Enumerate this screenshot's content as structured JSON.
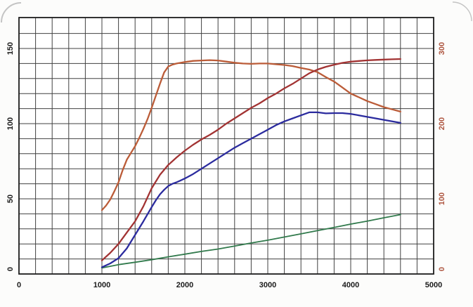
{
  "figure": {
    "background": "#fcfcfb",
    "plot_background": "#ffffff",
    "photo_corner_color": "#c4c4c4"
  },
  "chart_data": {
    "type": "line",
    "title": "",
    "subtitle": "",
    "legend": "none",
    "grid": {
      "show": true,
      "line_color": "#404040",
      "border_color": "#1c1c1c"
    },
    "x_axis": {
      "label": "",
      "unit": "rpm",
      "min": 0,
      "max": 5000,
      "tick_values": [
        0,
        1000,
        2000,
        3000,
        4000,
        5000
      ],
      "tick_labels": [
        "0",
        "1000",
        "2000",
        "3000",
        "4000",
        "5000"
      ],
      "minor_grid_step": 200,
      "label_color": "#1b1b1b"
    },
    "y_axis_left": {
      "label": "",
      "min": 0,
      "max": 170.5,
      "tick_values": [
        0,
        50,
        100,
        150
      ],
      "tick_labels": [
        "0",
        "50",
        "100",
        "150"
      ],
      "minor_grid_step": 10,
      "label_color": "#1b1b1b",
      "label_rotation_deg": -90
    },
    "y_axis_right": {
      "label": "",
      "min": 0,
      "max": 341,
      "tick_values": [
        0,
        100,
        200,
        300
      ],
      "tick_labels": [
        "0",
        "100",
        "200",
        "300"
      ],
      "label_color": "#ae5640",
      "label_rotation_deg": -90
    },
    "series": [
      {
        "name": "torque-curve-orange",
        "axis": "right",
        "color": "#bb5c38",
        "stroke_width": 2.3,
        "points": [
          [
            1000,
            85
          ],
          [
            1050,
            91
          ],
          [
            1100,
            99
          ],
          [
            1150,
            110
          ],
          [
            1200,
            122
          ],
          [
            1250,
            138
          ],
          [
            1300,
            152
          ],
          [
            1350,
            161
          ],
          [
            1400,
            170
          ],
          [
            1450,
            181
          ],
          [
            1500,
            193
          ],
          [
            1550,
            206
          ],
          [
            1600,
            221
          ],
          [
            1650,
            237
          ],
          [
            1700,
            253
          ],
          [
            1750,
            268
          ],
          [
            1800,
            276
          ],
          [
            1850,
            278.5
          ],
          [
            1900,
            280
          ],
          [
            2000,
            282
          ],
          [
            2100,
            283.5
          ],
          [
            2200,
            284
          ],
          [
            2300,
            284.5
          ],
          [
            2400,
            284
          ],
          [
            2500,
            282.5
          ],
          [
            2600,
            281
          ],
          [
            2700,
            280
          ],
          [
            2800,
            279.5
          ],
          [
            2900,
            280
          ],
          [
            3000,
            280
          ],
          [
            3100,
            279
          ],
          [
            3200,
            278
          ],
          [
            3300,
            276.5
          ],
          [
            3400,
            274
          ],
          [
            3500,
            272
          ],
          [
            3600,
            268.5
          ],
          [
            3700,
            262
          ],
          [
            3800,
            256
          ],
          [
            3900,
            248
          ],
          [
            4000,
            240
          ],
          [
            4100,
            235
          ],
          [
            4200,
            230
          ],
          [
            4300,
            226
          ],
          [
            4400,
            222
          ],
          [
            4500,
            219
          ],
          [
            4600,
            216
          ]
        ]
      },
      {
        "name": "power-curve-red",
        "axis": "left",
        "color": "#a23333",
        "stroke_width": 2.3,
        "points": [
          [
            1000,
            9
          ],
          [
            1100,
            14
          ],
          [
            1200,
            20
          ],
          [
            1300,
            27.5
          ],
          [
            1400,
            35
          ],
          [
            1500,
            45
          ],
          [
            1600,
            57
          ],
          [
            1700,
            66
          ],
          [
            1800,
            72.5
          ],
          [
            1900,
            77.5
          ],
          [
            2000,
            82
          ],
          [
            2100,
            86
          ],
          [
            2200,
            89.5
          ],
          [
            2300,
            92.5
          ],
          [
            2400,
            96
          ],
          [
            2500,
            100
          ],
          [
            2600,
            103.5
          ],
          [
            2700,
            107
          ],
          [
            2800,
            110.5
          ],
          [
            2900,
            113.5
          ],
          [
            3000,
            117
          ],
          [
            3100,
            120
          ],
          [
            3200,
            123.5
          ],
          [
            3300,
            126.5
          ],
          [
            3400,
            130
          ],
          [
            3500,
            133.5
          ],
          [
            3600,
            136
          ],
          [
            3700,
            137.8
          ],
          [
            3800,
            139.2
          ],
          [
            3900,
            140.4
          ],
          [
            4000,
            141.2
          ],
          [
            4100,
            141.7
          ],
          [
            4200,
            142.1
          ],
          [
            4300,
            142.4
          ],
          [
            4400,
            142.6
          ],
          [
            4500,
            142.8
          ],
          [
            4600,
            143
          ]
        ]
      },
      {
        "name": "power-curve-blue",
        "axis": "left",
        "color": "#2b2b9e",
        "stroke_width": 2.3,
        "points": [
          [
            1000,
            4.5
          ],
          [
            1100,
            7
          ],
          [
            1200,
            10.5
          ],
          [
            1300,
            17
          ],
          [
            1400,
            26
          ],
          [
            1500,
            35
          ],
          [
            1600,
            44.5
          ],
          [
            1650,
            49
          ],
          [
            1700,
            53
          ],
          [
            1750,
            56
          ],
          [
            1800,
            58.5
          ],
          [
            1850,
            60
          ],
          [
            1900,
            61
          ],
          [
            2000,
            63.5
          ],
          [
            2100,
            66.5
          ],
          [
            2200,
            70
          ],
          [
            2300,
            73.5
          ],
          [
            2400,
            77
          ],
          [
            2500,
            80.5
          ],
          [
            2600,
            84
          ],
          [
            2700,
            87
          ],
          [
            2800,
            90
          ],
          [
            2900,
            93
          ],
          [
            3000,
            96
          ],
          [
            3100,
            99
          ],
          [
            3200,
            101.5
          ],
          [
            3300,
            103.5
          ],
          [
            3400,
            105.5
          ],
          [
            3500,
            107.5
          ],
          [
            3600,
            107.5
          ],
          [
            3700,
            106.8
          ],
          [
            3800,
            107
          ],
          [
            3900,
            107
          ],
          [
            4000,
            106.5
          ],
          [
            4100,
            105.5
          ],
          [
            4200,
            104.5
          ],
          [
            4300,
            103.5
          ],
          [
            4400,
            102.5
          ],
          [
            4500,
            101.5
          ],
          [
            4600,
            100.5
          ]
        ]
      },
      {
        "name": "auxiliary-curve-green",
        "axis": "left",
        "color": "#317a4c",
        "stroke_width": 1.8,
        "points": [
          [
            1000,
            4
          ],
          [
            1200,
            6.2
          ],
          [
            1400,
            7.8
          ],
          [
            1600,
            9.5
          ],
          [
            1800,
            11.4
          ],
          [
            2000,
            13.2
          ],
          [
            2200,
            15
          ],
          [
            2400,
            16.6
          ],
          [
            2600,
            18.6
          ],
          [
            2800,
            20.6
          ],
          [
            3000,
            22.5
          ],
          [
            3200,
            24.6
          ],
          [
            3400,
            26.7
          ],
          [
            3600,
            28.9
          ],
          [
            3800,
            31
          ],
          [
            4000,
            33.2
          ],
          [
            4200,
            35.2
          ],
          [
            4400,
            37.4
          ],
          [
            4600,
            39.5
          ]
        ]
      }
    ]
  }
}
